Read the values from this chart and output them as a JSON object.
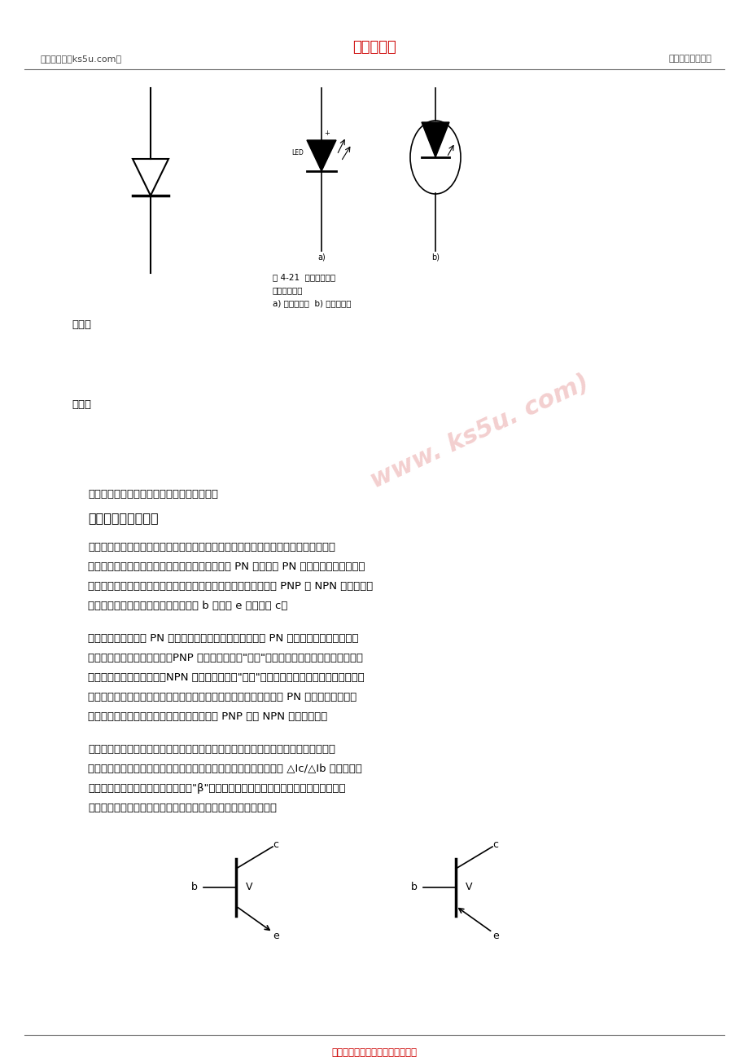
{
  "bg_color": "#ffffff",
  "header_left": "高考资源网（ks5u.com）",
  "header_center": "高考资源网",
  "header_right": "您身边的高考专家",
  "header_center_color": "#cc0000",
  "footer_text": "高考资源网版权所有，侵权必究！",
  "footer_color": "#cc0000",
  "watermark_text": "www.ks5u.com",
  "watermark_color": "#e8a090",
  "label_teding": "特点：",
  "label_zuoyong": "作用：",
  "label_yuedu": "阅读下列学习资料总结三极管的特点和作用：",
  "section_title": "（二）、晶体三极管",
  "para1": "晶体三极管，是半导体基本元器件之一，具有电流放大作用，是电子电路的核心元件。三极管是在一块半导体基片上制作两个相距很近的 PN 结，两个 PN 结把正块半导体分成三部分，中间部分是基区，两侧部分是发射区和集电区，排列方式有 PNP 和 NPN 两种，如图从三个区引出相应的电极，分别为基极 b 发射极 e 和集电极 c。",
  "para2": "发射区和基区之间的 PN 结叫发射结，集电区和基区之间的 PN 结叫集电极。基区很薄，而发射区较厚，杂质浓度大，PNP 型三极管发射区\"发射\"的是空穴，其移动方向与电流方向一致，故发射极箭头向里；NPN 型三极管发射区\"发射\"的是自由电子，其移动方向与电流方向相反，故发射极箭头向外。发射极箭头向外。发射极箭头指向也是 PN 结在正向电压下的导通方向。硅晶体三极管和锗晶体三极管都有 PNP 型和 NPN 型两种类型。",
  "para3": "晶体三极管具有电流放大作用，其实质是三极管能以基极电流微小的变化量来控制集电极电流较大的变化量。这是三极管最基本的和最重要的特性。我们将 △Ic/△Ib 的比值称为晶体三极管的电流放大倍数，用符号\"β\"表示。电流放大倍数对于某一只三极管来说是一个定值，但随着三极管工作时基极电流的变化也会有一定的改变。",
  "fig_caption": "图 4-21  发光二极管的\n电路图形符号\na) 新图形符号  b) 旧图形符号",
  "npn_label_b": "b",
  "npn_label_c": "c",
  "npn_label_e": "e",
  "npn_label_v": "V",
  "pnp_label_b": "b",
  "pnp_label_c": "c",
  "pnp_label_e": "e",
  "pnp_label_v": "V"
}
